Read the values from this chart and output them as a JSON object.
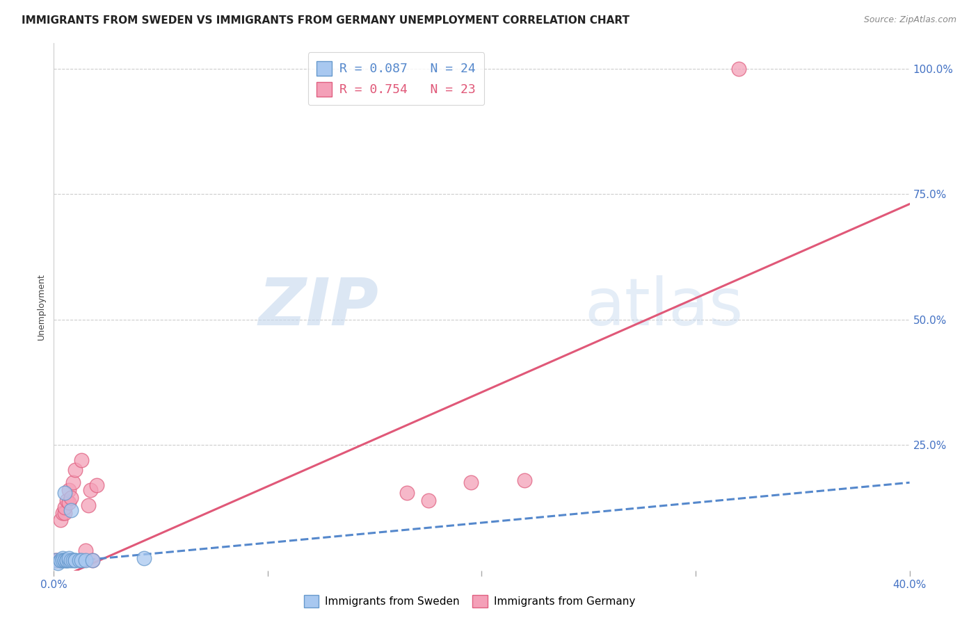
{
  "title": "IMMIGRANTS FROM SWEDEN VS IMMIGRANTS FROM GERMANY UNEMPLOYMENT CORRELATION CHART",
  "source": "Source: ZipAtlas.com",
  "ylabel": "Unemployment",
  "ytick_labels": [
    "100.0%",
    "75.0%",
    "50.0%",
    "25.0%"
  ],
  "ytick_values": [
    1.0,
    0.75,
    0.5,
    0.25
  ],
  "xlim": [
    0.0,
    0.4
  ],
  "ylim": [
    0.0,
    1.05
  ],
  "watermark_zip": "ZIP",
  "watermark_atlas": "atlas",
  "sweden_color": "#a8c8f0",
  "germany_color": "#f4a0b8",
  "sweden_edge_color": "#6699cc",
  "germany_edge_color": "#e06080",
  "sweden_line_color": "#5588cc",
  "germany_line_color": "#e05878",
  "sweden_scatter_x": [
    0.001,
    0.002,
    0.003,
    0.003,
    0.004,
    0.004,
    0.005,
    0.005,
    0.005,
    0.006,
    0.006,
    0.006,
    0.007,
    0.007,
    0.008,
    0.008,
    0.009,
    0.01,
    0.01,
    0.012,
    0.013,
    0.015,
    0.018,
    0.042
  ],
  "sweden_scatter_y": [
    0.02,
    0.015,
    0.02,
    0.02,
    0.025,
    0.02,
    0.02,
    0.155,
    0.02,
    0.02,
    0.02,
    0.02,
    0.02,
    0.025,
    0.02,
    0.12,
    0.02,
    0.02,
    0.02,
    0.02,
    0.02,
    0.02,
    0.02,
    0.025
  ],
  "germany_scatter_x": [
    0.001,
    0.002,
    0.003,
    0.004,
    0.005,
    0.005,
    0.006,
    0.007,
    0.007,
    0.008,
    0.009,
    0.01,
    0.013,
    0.015,
    0.016,
    0.017,
    0.018,
    0.02,
    0.165,
    0.175,
    0.195,
    0.22,
    0.32
  ],
  "germany_scatter_y": [
    0.02,
    0.02,
    0.1,
    0.115,
    0.115,
    0.125,
    0.14,
    0.135,
    0.16,
    0.145,
    0.175,
    0.2,
    0.22,
    0.04,
    0.13,
    0.16,
    0.02,
    0.17,
    0.155,
    0.14,
    0.175,
    0.18,
    1.0
  ],
  "germany_trendline_x0": 0.0,
  "germany_trendline_y0": -0.02,
  "germany_trendline_x1": 0.4,
  "germany_trendline_y1": 0.73,
  "sweden_trendline_x0": 0.0,
  "sweden_trendline_y0": 0.015,
  "sweden_trendline_x1": 0.4,
  "sweden_trendline_y1": 0.175,
  "title_fontsize": 11,
  "axis_label_fontsize": 9,
  "tick_fontsize": 11,
  "source_fontsize": 9,
  "legend_fontsize": 13
}
